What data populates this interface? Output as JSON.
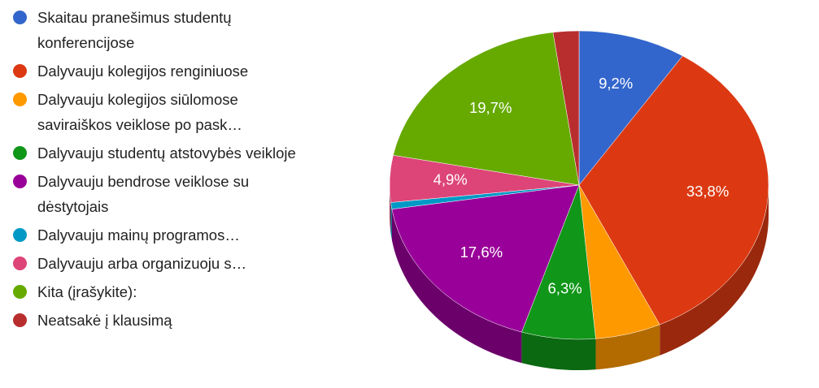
{
  "chart_data": {
    "type": "pie3d",
    "categories": [
      "Skaitau pranešimus studentų konferencijose",
      "Dalyvauju kolegijos renginiuose",
      "Dalyvauju kolegijos siūlomose saviraiškos veiklose po pask…",
      "Dalyvauju studentų atstovybės veikloje",
      "Dalyvauju bendrose veiklose su dėstytojais",
      "Dalyvauju mainų programos…",
      "Dalyvauju arba organizuoju s…",
      "Kita (įrašykite):",
      "Neatsakė į klausimą"
    ],
    "values": [
      9.2,
      33.8,
      5.6,
      6.3,
      17.6,
      0.7,
      4.9,
      19.7,
      2.2
    ],
    "value_labels": [
      "9,2%",
      "33,8%",
      null,
      "6,3%",
      "17,6%",
      null,
      "4,9%",
      "19,7%",
      null
    ],
    "colors": [
      "#3366cc",
      "#dc3912",
      "#ff9900",
      "#109618",
      "#990099",
      "#0099c6",
      "#dd4477",
      "#66aa00",
      "#b82e2e"
    ],
    "legend": "left"
  }
}
